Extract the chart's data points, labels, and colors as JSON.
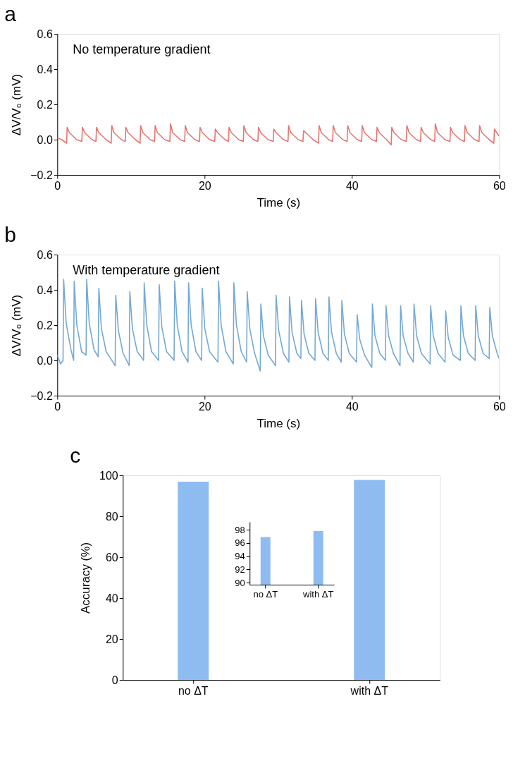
{
  "chart_data": [
    {
      "type": "line",
      "title": "a",
      "xlabel": "Time (s)",
      "ylabel": "ΔV/V₀ (mV)",
      "annotations": [
        "No temperature gradient"
      ],
      "xlim": [
        0,
        60
      ],
      "xticks": [
        0,
        20,
        40,
        60
      ],
      "ylim": [
        -0.2,
        0.6
      ],
      "yticks": [
        -0.2,
        {
          "value": 0,
          "label": "0.0"
        },
        0.2,
        0.4,
        0.6
      ],
      "grid": false,
      "line_style": "solid",
      "series": [
        {
          "color": "#e8756e",
          "x": [
            0,
            0.6,
            1.26,
            1.34,
            1.64,
            2.64,
            3.33,
            3.41,
            3.71,
            4.71,
            5.25,
            5.33,
            5.63,
            6.63,
            7.32,
            7.4,
            7.7,
            8.7,
            9.23,
            9.31,
            9.61,
            10.61,
            11.24,
            11.32,
            11.62,
            12.62,
            13.21,
            13.29,
            13.59,
            14.59,
            15.29,
            15.37,
            15.67,
            16.67,
            17.3,
            17.38,
            17.68,
            18.68,
            19.31,
            19.39,
            19.69,
            20.69,
            21.38,
            21.46,
            21.76,
            22.76,
            23.25,
            23.33,
            23.63,
            24.63,
            25.26,
            25.34,
            25.64,
            26.64,
            27.24,
            27.32,
            27.62,
            28.62,
            29.32,
            29.4,
            29.7,
            30.7,
            31.33,
            31.41,
            31.71,
            32.71,
            33.36,
            33.44,
            33.74,
            34.74,
            35.47,
            35.55,
            35.85,
            36.85,
            37.39,
            37.47,
            37.77,
            38.77,
            39.36,
            39.44,
            39.74,
            40.74,
            41.33,
            41.41,
            41.71,
            42.71,
            43.34,
            43.42,
            43.72,
            44.72,
            45.34,
            45.42,
            45.72,
            46.72,
            47.39,
            47.47,
            47.77,
            48.77,
            49.33,
            49.41,
            49.71,
            50.71,
            51.25,
            51.33,
            51.63,
            52.63,
            53.32,
            53.4,
            53.7,
            54.7,
            55.29,
            55.37,
            55.67,
            56.67,
            57.27,
            57.35,
            57.65,
            58.65,
            59.28,
            59.36,
            59.66,
            60
          ],
          "values": [
            0.01,
            0.0,
            -0.02,
            0.07,
            0.04,
            0.0,
            -0.01,
            0.07,
            0.04,
            0.0,
            -0.01,
            0.07,
            0.04,
            0.0,
            -0.02,
            0.08,
            0.04,
            0.0,
            -0.01,
            0.07,
            0.04,
            0.0,
            -0.02,
            0.08,
            0.04,
            0.0,
            -0.01,
            0.08,
            0.04,
            0.0,
            -0.01,
            0.09,
            0.04,
            0.0,
            -0.01,
            0.08,
            0.04,
            0.0,
            -0.01,
            0.07,
            0.04,
            0.0,
            -0.01,
            0.06,
            0.04,
            0.0,
            -0.01,
            0.07,
            0.04,
            0.0,
            -0.01,
            0.08,
            0.04,
            0.0,
            -0.01,
            0.07,
            0.04,
            0.0,
            -0.01,
            0.06,
            0.04,
            0.0,
            -0.01,
            0.08,
            0.04,
            0.0,
            -0.01,
            0.05,
            0.04,
            0.0,
            -0.02,
            0.08,
            0.04,
            0.0,
            -0.01,
            0.08,
            0.04,
            0.0,
            -0.01,
            0.08,
            0.04,
            0.0,
            -0.01,
            0.08,
            0.04,
            0.0,
            -0.01,
            0.07,
            0.04,
            0.0,
            -0.03,
            0.07,
            0.04,
            0.0,
            -0.01,
            0.08,
            0.04,
            0.0,
            -0.01,
            0.07,
            0.04,
            0.0,
            -0.01,
            0.09,
            0.04,
            0.0,
            -0.01,
            0.07,
            0.04,
            0.0,
            -0.01,
            0.08,
            0.04,
            0.0,
            -0.01,
            0.08,
            0.04,
            0.0,
            -0.02,
            0.06,
            0.04,
            0.02
          ]
        }
      ]
    },
    {
      "type": "line",
      "title": "b",
      "xlabel": "Time (s)",
      "ylabel": "ΔV/V₀ (mV)",
      "annotations": [
        "With temperature gradient"
      ],
      "xlim": [
        0,
        60
      ],
      "xticks": [
        0,
        20,
        40,
        60
      ],
      "ylim": [
        -0.2,
        0.6
      ],
      "yticks": [
        -0.2,
        {
          "value": 0,
          "label": "0.0"
        },
        0.2,
        0.4,
        0.6
      ],
      "grid": false,
      "line_style": "solid",
      "series": [
        {
          "color": "#74a9d7",
          "x": [
            0,
            0.45,
            0.78,
            0.86,
            1.21,
            1.86,
            2.22,
            2.3,
            2.65,
            3.3,
            3.91,
            3.99,
            4.34,
            4.99,
            5.56,
            5.64,
            5.99,
            6.64,
            7.86,
            7.94,
            8.29,
            8.94,
            9.77,
            9.85,
            10.2,
            10.85,
            11.72,
            11.8,
            12.15,
            12.8,
            13.76,
            13.84,
            14.19,
            14.84,
            15.86,
            15.94,
            16.29,
            16.94,
            17.75,
            17.83,
            18.18,
            18.83,
            19.6,
            19.68,
            20.03,
            20.68,
            21.82,
            21.9,
            22.25,
            22.9,
            23.9,
            23.98,
            24.33,
            24.98,
            25.71,
            25.79,
            26.14,
            26.79,
            27.56,
            27.64,
            27.99,
            28.64,
            29.63,
            29.71,
            30.06,
            30.71,
            31.45,
            31.53,
            31.88,
            32.53,
            33.08,
            33.16,
            33.51,
            34.16,
            34.99,
            35.07,
            35.42,
            36.07,
            36.81,
            36.89,
            37.24,
            37.89,
            38.56,
            38.64,
            38.99,
            39.64,
            40.64,
            40.72,
            41.07,
            41.72,
            42.71,
            42.79,
            43.14,
            43.79,
            44.56,
            44.64,
            44.99,
            45.64,
            46.54,
            46.62,
            46.97,
            47.62,
            48.36,
            48.44,
            48.79,
            49.44,
            50.62,
            50.7,
            51.05,
            51.7,
            52.66,
            52.74,
            53.09,
            53.74,
            54.73,
            54.81,
            55.16,
            55.81,
            56.74,
            56.82,
            57.17,
            57.82,
            58.65,
            58.73,
            59.08,
            59.73,
            60
          ],
          "values": [
            0.03,
            -0.02,
            0.0,
            0.46,
            0.21,
            0.06,
            0.0,
            0.45,
            0.2,
            0.05,
            0.03,
            0.46,
            0.21,
            0.06,
            0.02,
            0.41,
            0.18,
            0.05,
            -0.03,
            0.37,
            0.17,
            0.04,
            -0.03,
            0.39,
            0.18,
            0.05,
            0.0,
            0.44,
            0.2,
            0.05,
            0.0,
            0.43,
            0.19,
            0.05,
            0.0,
            0.45,
            0.2,
            0.05,
            -0.01,
            0.44,
            0.2,
            0.05,
            0.0,
            0.41,
            0.18,
            0.05,
            -0.01,
            0.45,
            0.2,
            0.05,
            -0.02,
            0.44,
            0.2,
            0.05,
            -0.01,
            0.39,
            0.18,
            0.04,
            -0.06,
            0.32,
            0.14,
            0.03,
            -0.03,
            0.37,
            0.17,
            0.04,
            -0.01,
            0.36,
            0.16,
            0.04,
            0.01,
            0.34,
            0.15,
            0.04,
            0.0,
            0.35,
            0.16,
            0.04,
            0.0,
            0.36,
            0.16,
            0.04,
            -0.01,
            0.34,
            0.15,
            0.04,
            -0.01,
            0.26,
            0.12,
            0.03,
            -0.04,
            0.32,
            0.14,
            0.04,
            0.0,
            0.31,
            0.14,
            0.04,
            -0.03,
            0.31,
            0.14,
            0.04,
            -0.01,
            0.32,
            0.14,
            0.04,
            -0.02,
            0.31,
            0.14,
            0.04,
            -0.01,
            0.28,
            0.13,
            0.03,
            0.0,
            0.31,
            0.14,
            0.04,
            0.0,
            0.31,
            0.14,
            0.04,
            0.01,
            0.3,
            0.14,
            0.04,
            0.01
          ]
        }
      ]
    },
    {
      "type": "bar",
      "title": "c",
      "ylabel": "Accuracy (%)",
      "categories": [
        "no ΔT",
        "with ΔT"
      ],
      "values": [
        96.9,
        97.8
      ],
      "colors": [
        "#8fbcf0",
        "#8fbcf0"
      ],
      "ylim": [
        0,
        100
      ],
      "yticks": [
        0,
        20,
        40,
        60,
        80,
        100
      ],
      "grid": false
    },
    {
      "type": "bar",
      "categories": [
        "no ΔT",
        "with ΔT"
      ],
      "values": [
        96.9,
        97.8
      ],
      "colors": [
        "#8fbcf0",
        "#8fbcf0"
      ],
      "ylim": [
        89.7,
        99.2
      ],
      "yticks": [
        90,
        92,
        94,
        96,
        98
      ],
      "grid": false
    }
  ]
}
